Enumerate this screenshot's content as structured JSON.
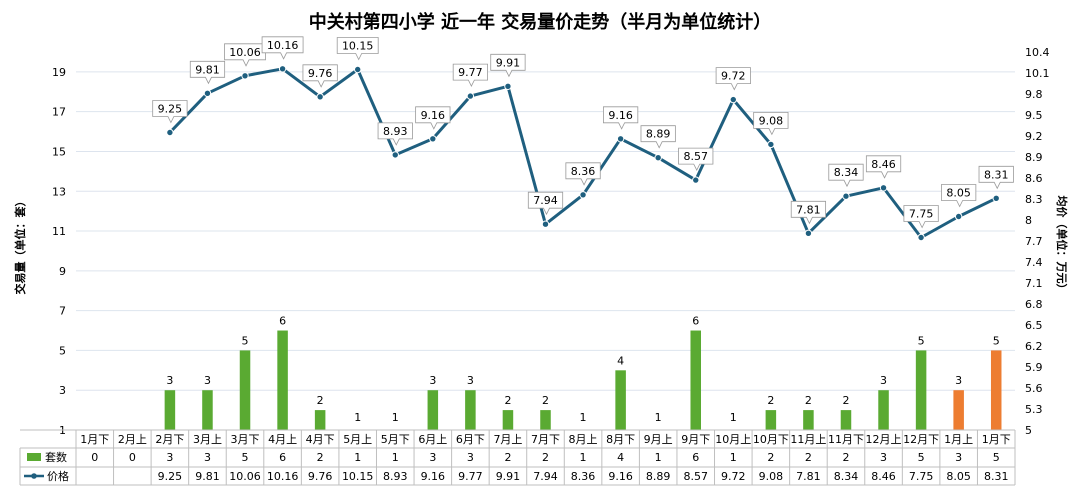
{
  "chart_data": {
    "type": "bar+line",
    "title": "中关村第四小学 近一年 交易量价走势（半月为单位统计）",
    "ylabel_left": "交易量（单位：套）",
    "ylabel_right": "均价（单位：万元）",
    "left_ticks": [
      "1",
      "3",
      "5",
      "7",
      "9",
      "11",
      "13",
      "15",
      "17",
      "19"
    ],
    "right_ticks": [
      "5",
      "5.3",
      "5.6",
      "5.9",
      "6.2",
      "6.5",
      "6.8",
      "7.1",
      "7.4",
      "7.7",
      "8",
      "8.3",
      "8.6",
      "8.9",
      "9.2",
      "9.5",
      "9.8",
      "10.1",
      "10.4"
    ],
    "ylim_left": [
      1,
      20
    ],
    "ylim_right": [
      5,
      10.4
    ],
    "categories": [
      "1月下",
      "2月上",
      "2月下",
      "3月上",
      "3月下",
      "4月上",
      "4月下",
      "5月上",
      "5月下",
      "6月上",
      "6月下",
      "7月上",
      "7月下",
      "8月上",
      "8月下",
      "9月上",
      "9月下",
      "10月上",
      "10月下",
      "11月上",
      "11月下",
      "12月上",
      "12月下",
      "1月上",
      "1月下"
    ],
    "series": [
      {
        "name": "套数",
        "type": "bar",
        "color": "#5aaa32",
        "highlight_color": "#ed7d31",
        "highlight_indices": [
          23,
          24
        ],
        "values": [
          0,
          0,
          3,
          3,
          5,
          6,
          2,
          1,
          1,
          3,
          3,
          2,
          2,
          1,
          4,
          1,
          6,
          1,
          2,
          2,
          2,
          3,
          5,
          3,
          5
        ],
        "table_values": [
          "0",
          "0",
          "3",
          "3",
          "5",
          "6",
          "2",
          "1",
          "1",
          "3",
          "3",
          "2",
          "2",
          "1",
          "4",
          "1",
          "6",
          "1",
          "2",
          "2",
          "2",
          "3",
          "5",
          "3",
          "5"
        ]
      },
      {
        "name": "价格",
        "type": "line",
        "color": "#1f5f7f",
        "values": [
          null,
          null,
          9.25,
          9.81,
          10.06,
          10.16,
          9.76,
          10.15,
          8.93,
          9.16,
          9.77,
          9.91,
          7.94,
          8.36,
          9.16,
          8.89,
          8.57,
          9.72,
          9.08,
          7.81,
          8.34,
          8.46,
          7.75,
          8.05,
          8.31
        ],
        "table_values": [
          "",
          "",
          "9.25",
          "9.81",
          "10.06",
          "10.16",
          "9.76",
          "10.15",
          "8.93",
          "9.16",
          "9.77",
          "9.91",
          "7.94",
          "8.36",
          "9.16",
          "8.89",
          "8.57",
          "9.72",
          "9.08",
          "7.81",
          "8.34",
          "8.46",
          "7.75",
          "8.05",
          "8.31"
        ]
      }
    ]
  }
}
